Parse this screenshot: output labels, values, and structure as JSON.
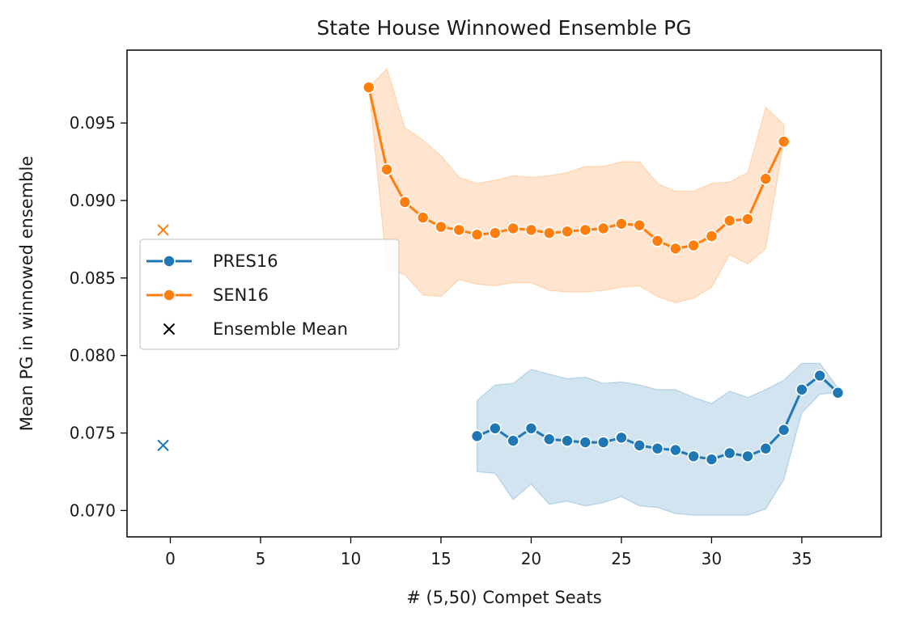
{
  "chart_data": {
    "type": "line",
    "title": "State House Winnowed Ensemble PG",
    "xlabel": "# (5,50) Compet Seats",
    "ylabel": "Mean PG in winnowed ensemble",
    "xlim": [
      -2.4,
      39.4
    ],
    "ylim": [
      0.0683,
      0.0997
    ],
    "xticks": [
      0,
      5,
      10,
      15,
      20,
      25,
      30,
      35
    ],
    "xtick_labels": [
      "0",
      "5",
      "10",
      "15",
      "20",
      "25",
      "30",
      "35"
    ],
    "yticks": [
      0.07,
      0.075,
      0.08,
      0.085,
      0.09,
      0.095
    ],
    "ytick_labels": [
      "0.070",
      "0.075",
      "0.080",
      "0.085",
      "0.090",
      "0.095"
    ],
    "grid": false,
    "legend_position": "center-left",
    "series": [
      {
        "name": "PRES16",
        "color": "#1f77b4",
        "x": [
          17,
          18,
          19,
          20,
          21,
          22,
          23,
          24,
          25,
          26,
          27,
          28,
          29,
          30,
          31,
          32,
          33,
          34,
          35,
          36,
          37
        ],
        "y": [
          0.0748,
          0.0753,
          0.0745,
          0.0753,
          0.0746,
          0.0745,
          0.0744,
          0.0744,
          0.0747,
          0.0742,
          0.074,
          0.0739,
          0.0735,
          0.0733,
          0.0737,
          0.0735,
          0.074,
          0.0752,
          0.0778,
          0.0787,
          0.0776
        ],
        "lower": [
          0.0725,
          0.0724,
          0.0707,
          0.0717,
          0.0704,
          0.0706,
          0.0703,
          0.0705,
          0.0709,
          0.0703,
          0.0702,
          0.0698,
          0.0697,
          0.0697,
          0.0697,
          0.0697,
          0.0701,
          0.072,
          0.0763,
          0.0775,
          0.0776
        ],
        "upper": [
          0.0771,
          0.0781,
          0.0782,
          0.0791,
          0.0788,
          0.0785,
          0.0786,
          0.0782,
          0.0783,
          0.0781,
          0.0778,
          0.0778,
          0.0773,
          0.0769,
          0.0777,
          0.0773,
          0.0778,
          0.0784,
          0.0795,
          0.0795,
          0.0779
        ],
        "ensemble_mean": {
          "x": -0.4,
          "y": 0.0742
        }
      },
      {
        "name": "SEN16",
        "color": "#ff7f0e",
        "x": [
          11,
          12,
          13,
          14,
          15,
          16,
          17,
          18,
          19,
          20,
          21,
          22,
          23,
          24,
          25,
          26,
          27,
          28,
          29,
          30,
          31,
          32,
          33,
          34
        ],
        "y": [
          0.0973,
          0.092,
          0.0899,
          0.0889,
          0.0883,
          0.0881,
          0.0878,
          0.0879,
          0.0882,
          0.0881,
          0.0879,
          0.088,
          0.0881,
          0.0882,
          0.0885,
          0.0884,
          0.0874,
          0.0869,
          0.0871,
          0.0877,
          0.0887,
          0.0888,
          0.0914,
          0.0938
        ],
        "lower": [
          0.0973,
          0.0856,
          0.0852,
          0.0839,
          0.0838,
          0.0849,
          0.0846,
          0.0845,
          0.0847,
          0.0847,
          0.0842,
          0.0841,
          0.0841,
          0.0842,
          0.0844,
          0.0845,
          0.0838,
          0.0834,
          0.0837,
          0.0844,
          0.0865,
          0.0859,
          0.0869,
          0.0938
        ],
        "upper": [
          0.0973,
          0.0985,
          0.0947,
          0.0939,
          0.0929,
          0.0915,
          0.0911,
          0.0913,
          0.0916,
          0.0915,
          0.0916,
          0.0918,
          0.0922,
          0.0922,
          0.0925,
          0.0925,
          0.0911,
          0.0906,
          0.0906,
          0.0911,
          0.0912,
          0.0918,
          0.096,
          0.0949
        ],
        "ensemble_mean": {
          "x": -0.4,
          "y": 0.0881
        }
      }
    ],
    "legend": [
      {
        "label": "PRES16",
        "color": "#1f77b4",
        "marker": "line-dot"
      },
      {
        "label": "SEN16",
        "color": "#ff7f0e",
        "marker": "line-dot"
      },
      {
        "label": "Ensemble Mean",
        "color": "#000000",
        "marker": "x"
      }
    ]
  }
}
